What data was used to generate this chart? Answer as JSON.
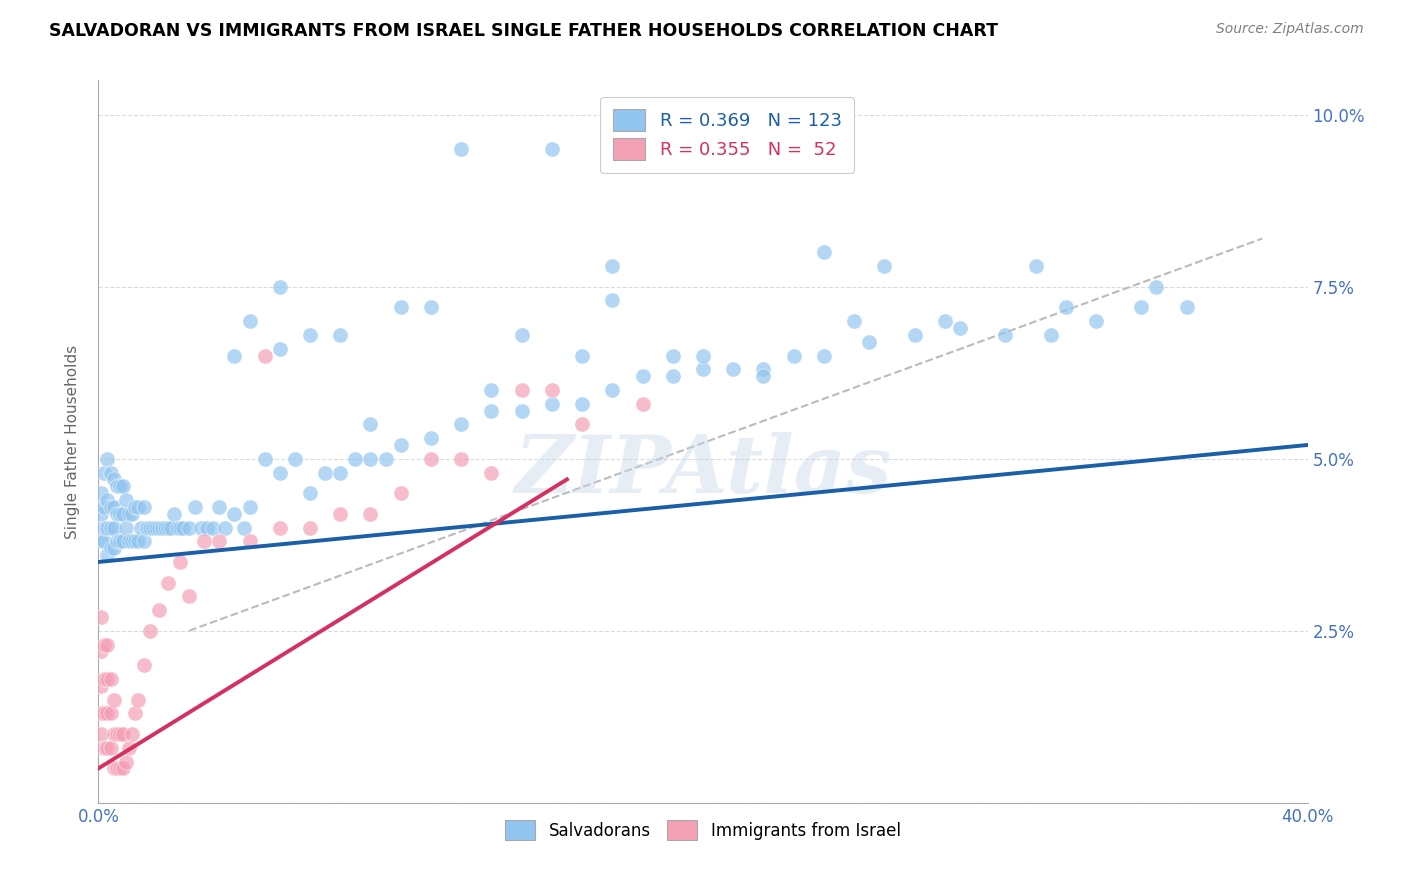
{
  "title": "SALVADORAN VS IMMIGRANTS FROM ISRAEL SINGLE FATHER HOUSEHOLDS CORRELATION CHART",
  "source": "Source: ZipAtlas.com",
  "ylabel": "Single Father Households",
  "xlim": [
    0.0,
    0.4
  ],
  "ylim": [
    0.0,
    0.105
  ],
  "x_ticks": [
    0.0,
    0.05,
    0.1,
    0.15,
    0.2,
    0.25,
    0.3,
    0.35,
    0.4
  ],
  "y_ticks": [
    0.0,
    0.025,
    0.05,
    0.075,
    0.1
  ],
  "y_tick_labels_right": [
    "",
    "2.5%",
    "5.0%",
    "7.5%",
    "10.0%"
  ],
  "color_blue": "#92C5F0",
  "color_pink": "#F4A0B5",
  "color_blue_line": "#1A5FA8",
  "color_pink_line": "#D43060",
  "color_dashed": "#BBBBBB",
  "blue_line_x": [
    0.0,
    0.4
  ],
  "blue_line_y": [
    0.035,
    0.052
  ],
  "pink_line_x": [
    0.0,
    0.155
  ],
  "pink_line_y": [
    0.005,
    0.047
  ],
  "dashed_line_x": [
    0.03,
    0.385
  ],
  "dashed_line_y": [
    0.025,
    0.082
  ],
  "background_color": "#FFFFFF",
  "grid_color": "#D8D8D8",
  "salvadoran_x": [
    0.001,
    0.001,
    0.001,
    0.002,
    0.002,
    0.002,
    0.002,
    0.003,
    0.003,
    0.003,
    0.003,
    0.004,
    0.004,
    0.004,
    0.004,
    0.005,
    0.005,
    0.005,
    0.005,
    0.006,
    0.006,
    0.006,
    0.007,
    0.007,
    0.007,
    0.008,
    0.008,
    0.008,
    0.009,
    0.009,
    0.01,
    0.01,
    0.011,
    0.011,
    0.012,
    0.012,
    0.013,
    0.013,
    0.014,
    0.015,
    0.015,
    0.016,
    0.017,
    0.018,
    0.019,
    0.02,
    0.021,
    0.022,
    0.023,
    0.024,
    0.025,
    0.026,
    0.027,
    0.028,
    0.03,
    0.032,
    0.034,
    0.036,
    0.038,
    0.04,
    0.042,
    0.045,
    0.048,
    0.05,
    0.055,
    0.06,
    0.065,
    0.07,
    0.075,
    0.08,
    0.085,
    0.09,
    0.095,
    0.1,
    0.11,
    0.12,
    0.13,
    0.14,
    0.15,
    0.16,
    0.17,
    0.18,
    0.19,
    0.2,
    0.21,
    0.22,
    0.23,
    0.24,
    0.255,
    0.27,
    0.285,
    0.3,
    0.315,
    0.33,
    0.345,
    0.36,
    0.05,
    0.06,
    0.12,
    0.15,
    0.17,
    0.2,
    0.22,
    0.17,
    0.31,
    0.2,
    0.1,
    0.13,
    0.25,
    0.09,
    0.14,
    0.28,
    0.32,
    0.19,
    0.26,
    0.35,
    0.07,
    0.08,
    0.16,
    0.24,
    0.06,
    0.045,
    0.11
  ],
  "salvadoran_y": [
    0.038,
    0.042,
    0.045,
    0.038,
    0.04,
    0.043,
    0.048,
    0.036,
    0.04,
    0.044,
    0.05,
    0.037,
    0.04,
    0.043,
    0.048,
    0.037,
    0.04,
    0.043,
    0.047,
    0.038,
    0.042,
    0.046,
    0.038,
    0.042,
    0.046,
    0.038,
    0.042,
    0.046,
    0.04,
    0.044,
    0.038,
    0.042,
    0.038,
    0.042,
    0.038,
    0.043,
    0.038,
    0.043,
    0.04,
    0.038,
    0.043,
    0.04,
    0.04,
    0.04,
    0.04,
    0.04,
    0.04,
    0.04,
    0.04,
    0.04,
    0.042,
    0.04,
    0.04,
    0.04,
    0.04,
    0.043,
    0.04,
    0.04,
    0.04,
    0.043,
    0.04,
    0.042,
    0.04,
    0.043,
    0.05,
    0.048,
    0.05,
    0.045,
    0.048,
    0.048,
    0.05,
    0.05,
    0.05,
    0.052,
    0.053,
    0.055,
    0.057,
    0.057,
    0.058,
    0.058,
    0.06,
    0.062,
    0.062,
    0.063,
    0.063,
    0.063,
    0.065,
    0.065,
    0.067,
    0.068,
    0.069,
    0.068,
    0.068,
    0.07,
    0.072,
    0.072,
    0.07,
    0.066,
    0.095,
    0.095,
    0.073,
    0.065,
    0.062,
    0.078,
    0.078,
    0.095,
    0.072,
    0.06,
    0.07,
    0.055,
    0.068,
    0.07,
    0.072,
    0.065,
    0.078,
    0.075,
    0.068,
    0.068,
    0.065,
    0.08,
    0.075,
    0.065,
    0.072
  ],
  "israel_x": [
    0.001,
    0.001,
    0.001,
    0.001,
    0.001,
    0.002,
    0.002,
    0.002,
    0.002,
    0.003,
    0.003,
    0.003,
    0.003,
    0.004,
    0.004,
    0.004,
    0.005,
    0.005,
    0.005,
    0.006,
    0.006,
    0.007,
    0.007,
    0.008,
    0.008,
    0.009,
    0.01,
    0.011,
    0.012,
    0.013,
    0.015,
    0.017,
    0.02,
    0.023,
    0.027,
    0.03,
    0.035,
    0.04,
    0.05,
    0.06,
    0.07,
    0.08,
    0.09,
    0.1,
    0.11,
    0.13,
    0.15,
    0.055,
    0.12,
    0.14,
    0.16,
    0.18
  ],
  "israel_y": [
    0.01,
    0.013,
    0.017,
    0.022,
    0.027,
    0.008,
    0.013,
    0.018,
    0.023,
    0.008,
    0.013,
    0.018,
    0.023,
    0.008,
    0.013,
    0.018,
    0.005,
    0.01,
    0.015,
    0.005,
    0.01,
    0.005,
    0.01,
    0.005,
    0.01,
    0.006,
    0.008,
    0.01,
    0.013,
    0.015,
    0.02,
    0.025,
    0.028,
    0.032,
    0.035,
    0.03,
    0.038,
    0.038,
    0.038,
    0.04,
    0.04,
    0.042,
    0.042,
    0.045,
    0.05,
    0.048,
    0.06,
    0.065,
    0.05,
    0.06,
    0.055,
    0.058
  ]
}
